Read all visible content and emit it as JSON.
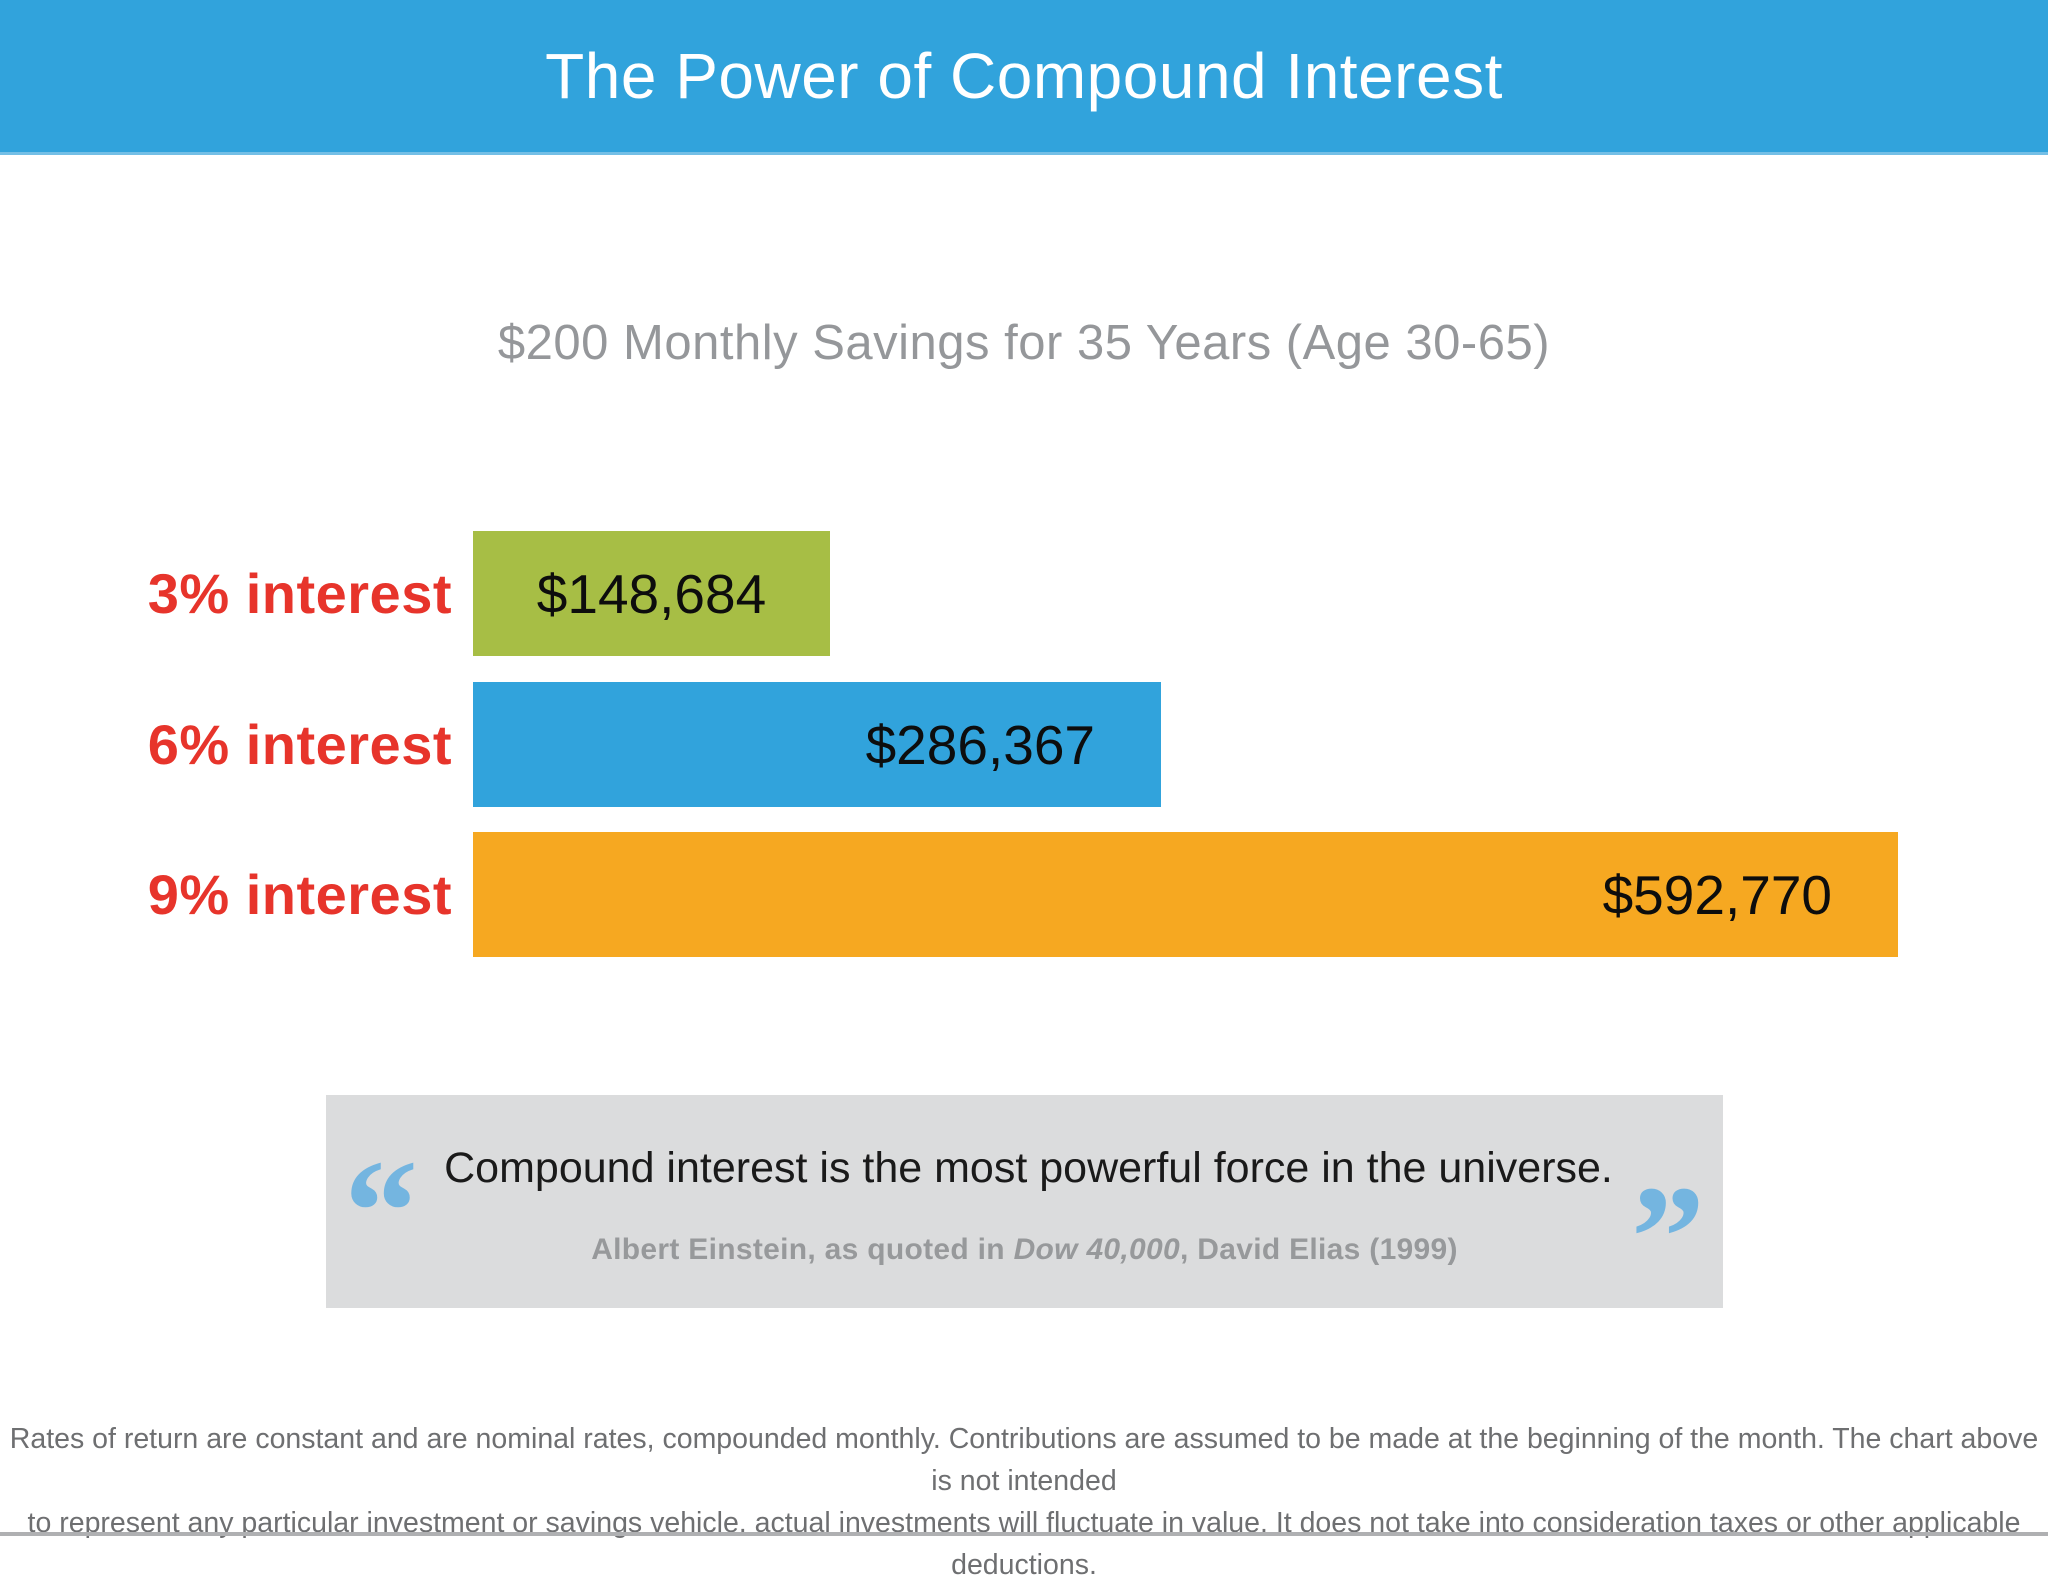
{
  "header": {
    "title": "The Power of Compound Interest"
  },
  "subtitle": "$200 Monthly Savings for 35 Years (Age 30-65)",
  "chart_data": {
    "type": "bar",
    "orientation": "horizontal",
    "title": "$200 Monthly Savings for 35 Years (Age 30-65)",
    "categories": [
      "3% interest",
      "6% interest",
      "9% interest"
    ],
    "values": [
      148684,
      286367,
      592770
    ],
    "value_labels": [
      "$148,684",
      "$286,367",
      "$592,770"
    ],
    "bar_colors": [
      "#A7BE45",
      "#31A3DC",
      "#F6A821"
    ],
    "category_label_color": "#E7342B",
    "value_label_color": "#0D0D0D",
    "value_align": [
      "center",
      "right",
      "right"
    ],
    "xlim": [
      0,
      620000
    ],
    "grid": false,
    "legend": false
  },
  "quote": {
    "open_mark": "“",
    "close_mark": "”",
    "text": "Compound interest is the most powerful force in the universe.",
    "attribution_prefix": "Albert Einstein, as quoted in ",
    "attribution_italic": "Dow 40,000",
    "attribution_suffix": ", David Elias (1999)",
    "mark_color": "#74B5E0",
    "box_color": "#DBDCDD"
  },
  "footer": {
    "line1": "Rates of return are constant and are nominal rates, compounded monthly. Contributions are assumed to be made at the beginning of the month. The chart above is not intended",
    "line2": "to represent any particular investment or savings vehicle, actual investments will fluctuate in value. It does not take into consideration taxes or other applicable deductions."
  },
  "colors": {
    "header_blue": "#31A3DC",
    "header_rule": "#74BFE6",
    "subtitle_gray": "#95979A",
    "footer_gray": "#6E6F71",
    "bottom_rule_gray": "#AFB0B2"
  }
}
